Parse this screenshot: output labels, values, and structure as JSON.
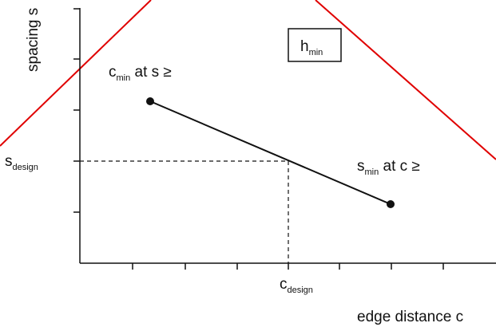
{
  "labels": {
    "y_axis": "spacing s",
    "x_axis": "edge distance c",
    "h_min": {
      "main": "h",
      "sub": "min"
    },
    "s_design": {
      "main": "s",
      "sub": "design"
    },
    "c_design": {
      "main": "c",
      "sub": "design"
    },
    "c_min_at": {
      "main": "c",
      "sub": "min",
      "rest": " at s ≥"
    },
    "s_min_at": {
      "main": "s",
      "sub": "min",
      "rest": " at c ≥"
    }
  },
  "colors": {
    "diagonal_lines": "#e00000",
    "axes": "#111111",
    "curve": "#111111"
  }
}
